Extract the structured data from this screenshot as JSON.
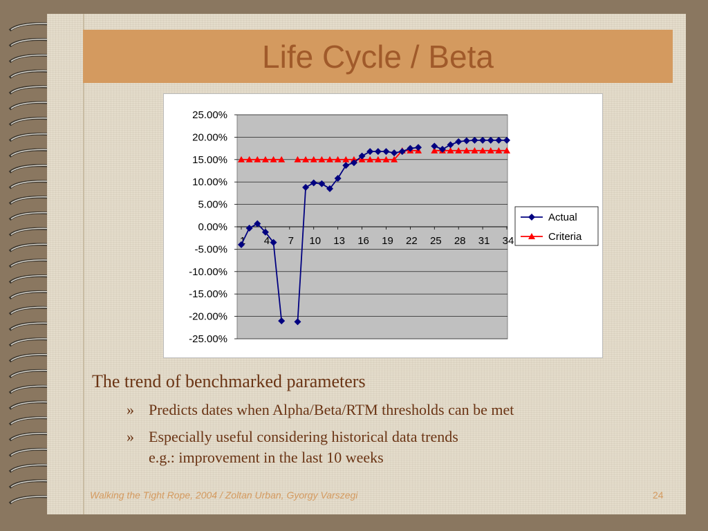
{
  "slide": {
    "title": "Life Cycle / Beta",
    "heading": "The trend of benchmarked parameters",
    "bullets": [
      {
        "mark": "»",
        "lines": [
          "Predicts dates when Alpha/Beta/RTM thresholds can be met"
        ]
      },
      {
        "mark": "»",
        "lines": [
          "Especially useful considering historical data trends",
          "e.g.: improvement in the last 10 weeks"
        ]
      }
    ],
    "footer_left": "Walking the Tight Rope, 2004 / Zoltan Urban, Gyorgy Varszegi",
    "page_number": "24"
  },
  "colors": {
    "title_bar": "#d49a5f",
    "title_text": "#a05a2a",
    "body_text": "#6a3414",
    "plot_bg": "#c0c0c0",
    "actual": "#000080",
    "criteria": "#ff0000"
  },
  "chart_data": {
    "type": "line",
    "x": [
      1,
      2,
      3,
      4,
      5,
      6,
      7,
      8,
      9,
      10,
      11,
      12,
      13,
      14,
      15,
      16,
      17,
      18,
      19,
      20,
      21,
      22,
      23,
      24,
      25,
      26,
      27,
      28,
      29,
      30,
      31,
      32,
      33,
      34
    ],
    "xticks": [
      "1",
      "4",
      "7",
      "10",
      "13",
      "16",
      "19",
      "22",
      "25",
      "28",
      "31",
      "34"
    ],
    "ylim": [
      -0.25,
      0.25
    ],
    "yticks": [
      "25.00%",
      "20.00%",
      "15.00%",
      "10.00%",
      "5.00%",
      "0.00%",
      "-5.00%",
      "-10.00%",
      "-15.00%",
      "-20.00%",
      "-25.00%"
    ],
    "grid": true,
    "legend_position": "right",
    "series": [
      {
        "name": "Actual",
        "marker": "diamond",
        "values": [
          -0.04,
          -0.003,
          0.007,
          -0.012,
          -0.035,
          -0.21,
          null,
          -0.212,
          0.088,
          0.098,
          0.096,
          0.085,
          0.108,
          0.137,
          0.143,
          0.158,
          0.168,
          0.168,
          0.168,
          0.165,
          0.168,
          0.175,
          0.177,
          null,
          0.18,
          0.173,
          0.183,
          0.19,
          0.192,
          0.193,
          0.193,
          0.193,
          0.193,
          0.193
        ]
      },
      {
        "name": "Criteria",
        "marker": "triangle",
        "values": [
          0.15,
          0.15,
          0.15,
          0.15,
          0.15,
          0.15,
          null,
          0.15,
          0.15,
          0.15,
          0.15,
          0.15,
          0.15,
          0.15,
          0.15,
          0.15,
          0.15,
          0.15,
          0.15,
          0.15,
          0.17,
          0.17,
          0.17,
          null,
          0.17,
          0.17,
          0.17,
          0.17,
          0.17,
          0.17,
          0.17,
          0.17,
          0.17,
          0.17
        ]
      }
    ]
  }
}
